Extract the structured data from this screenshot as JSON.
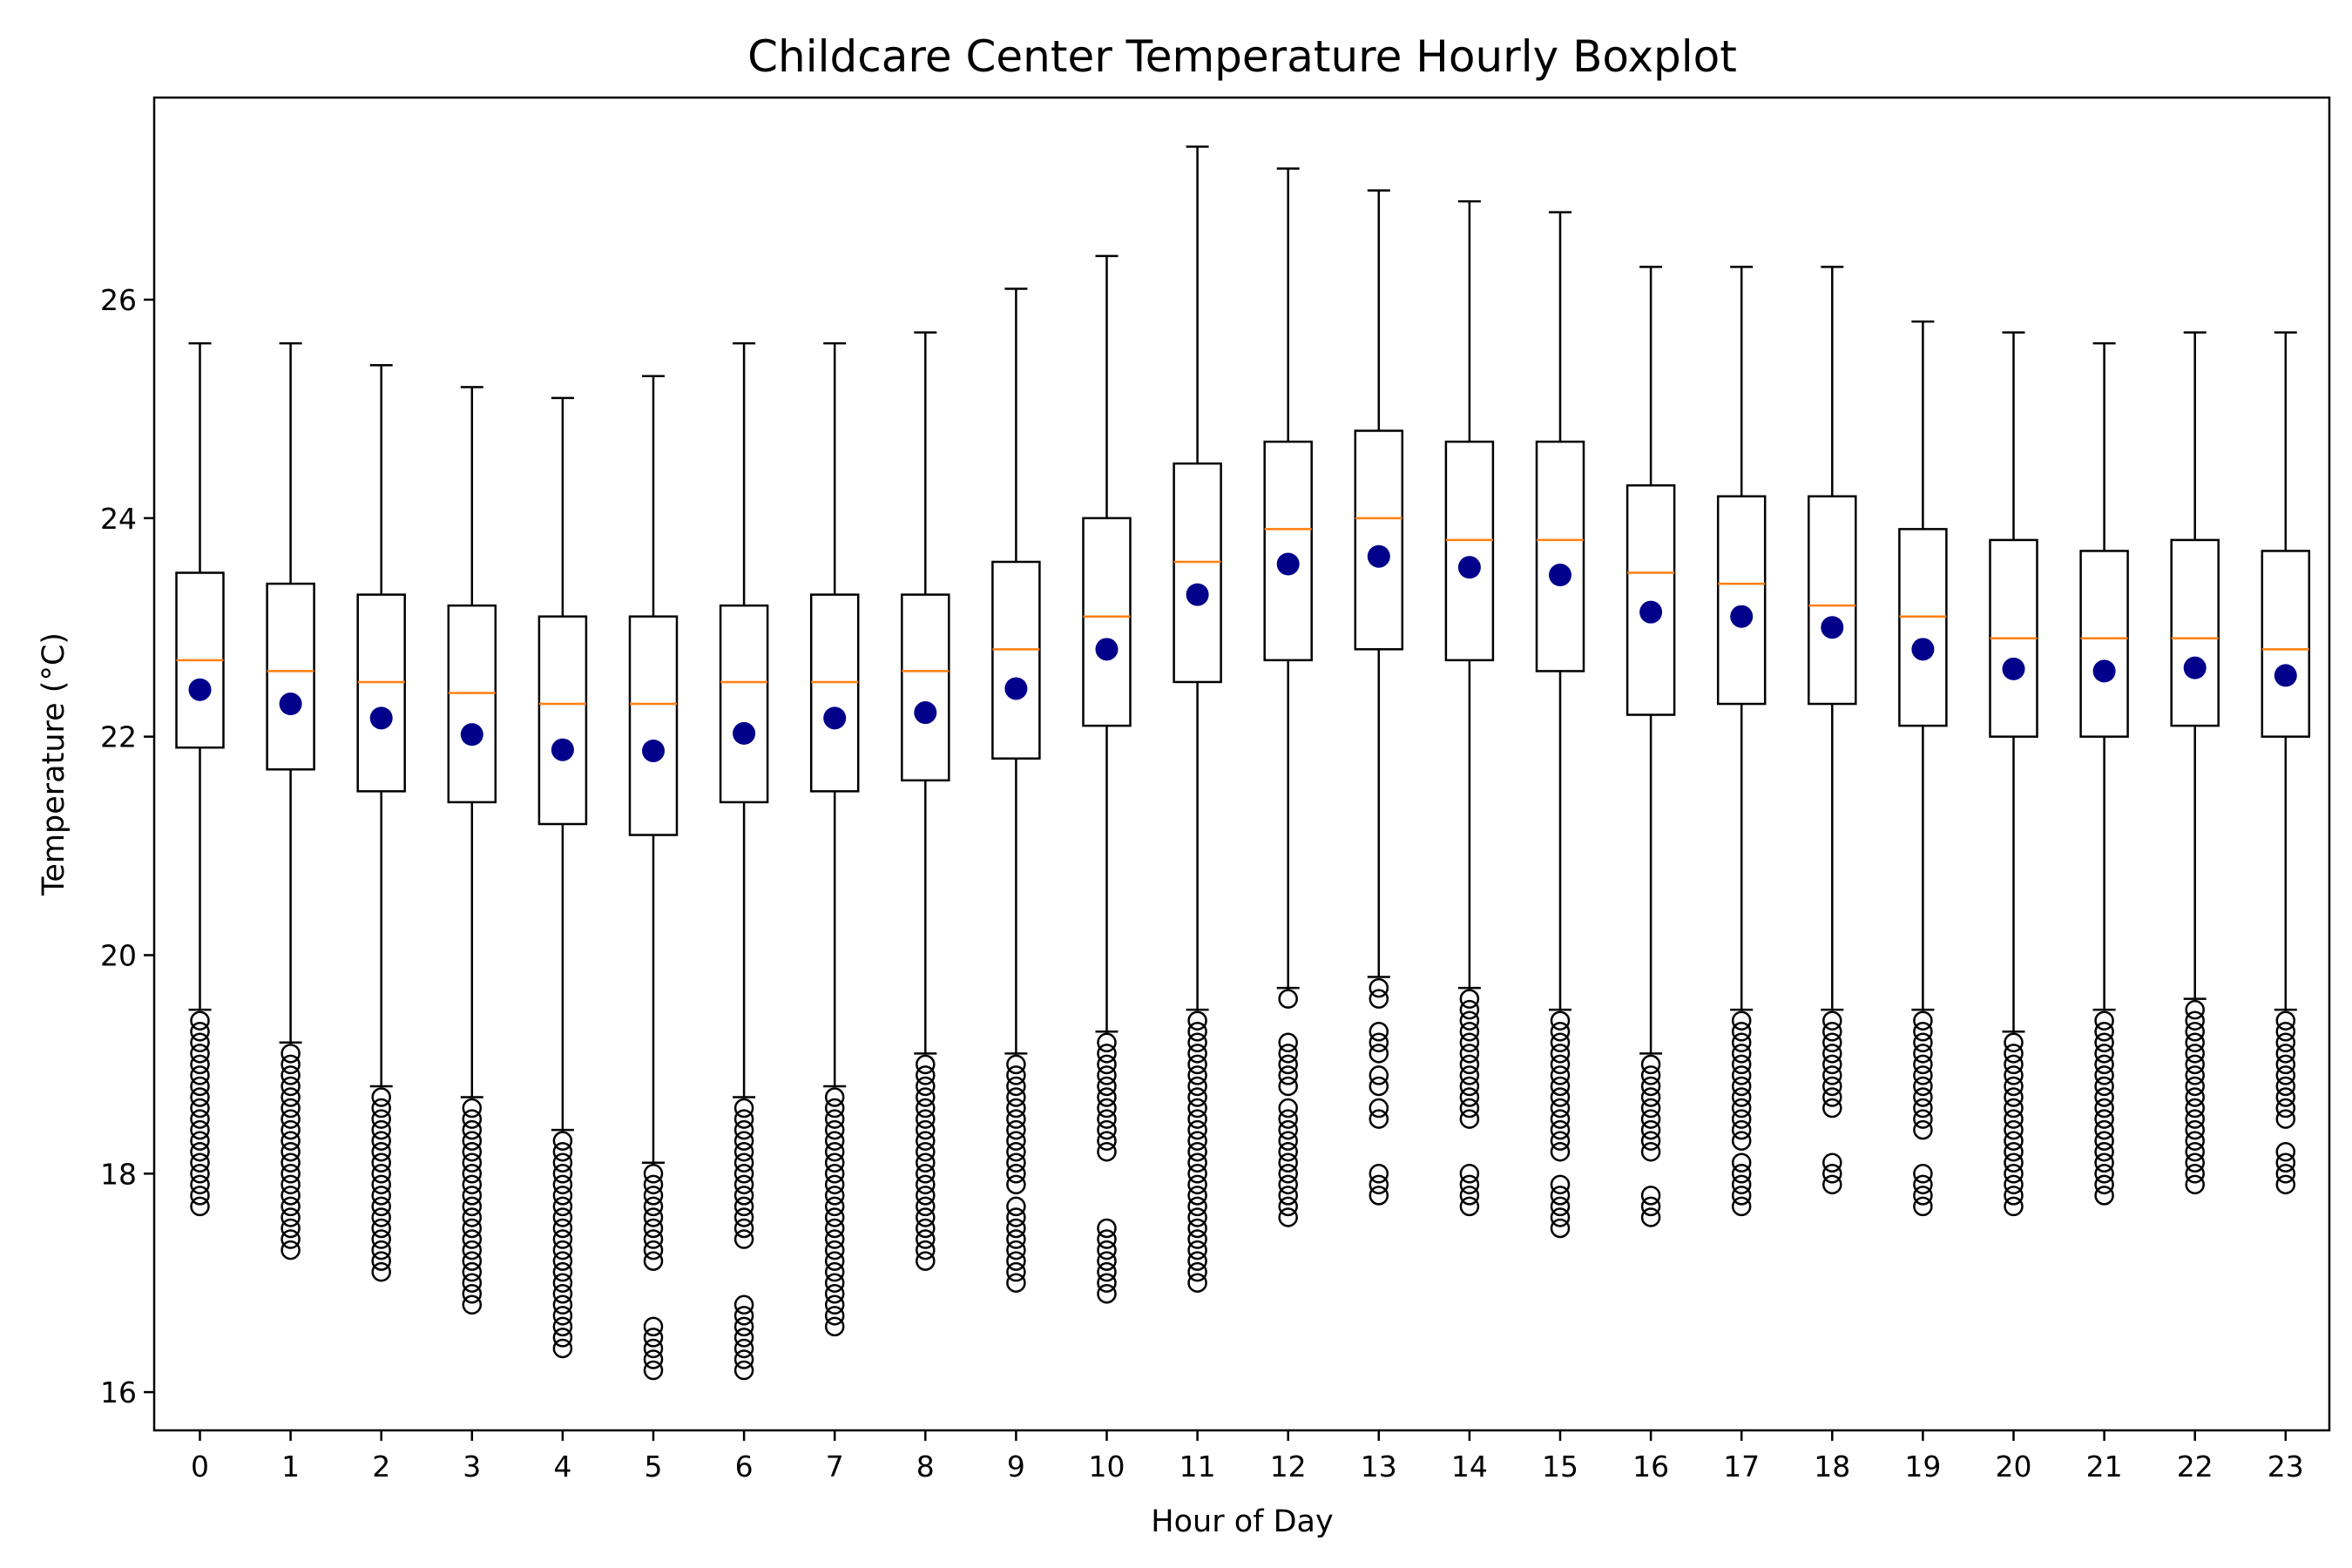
{
  "chart_data": {
    "type": "boxplot",
    "title": "Childcare Center Temperature Hourly Boxplot",
    "xlabel": "Hour of Day",
    "ylabel": "Temperature (°C)",
    "ylim": [
      15.65,
      27.85
    ],
    "yticks": [
      16,
      18,
      20,
      22,
      24,
      26
    ],
    "grid": false,
    "colors": {
      "box": "#000000",
      "median": "#ff7f0e",
      "mean": "#00008b",
      "outlier": "#000000"
    },
    "categories": [
      "0",
      "1",
      "2",
      "3",
      "4",
      "5",
      "6",
      "7",
      "8",
      "9",
      "10",
      "11",
      "12",
      "13",
      "14",
      "15",
      "16",
      "17",
      "18",
      "19",
      "20",
      "21",
      "22",
      "23"
    ],
    "boxes": [
      {
        "hour": "0",
        "whislo": 19.5,
        "q1": 21.9,
        "med": 22.7,
        "q3": 23.5,
        "whishi": 25.6,
        "mean": 22.43,
        "fliers": [
          19.4,
          19.3,
          19.2,
          19.1,
          19.0,
          18.9,
          18.8,
          18.7,
          18.6,
          18.5,
          18.4,
          18.3,
          18.2,
          18.1,
          18.0,
          17.9,
          17.8,
          17.7
        ]
      },
      {
        "hour": "1",
        "whislo": 19.2,
        "q1": 21.7,
        "med": 22.6,
        "q3": 23.4,
        "whishi": 25.6,
        "mean": 22.3,
        "fliers": [
          19.1,
          19.0,
          18.9,
          18.8,
          18.7,
          18.6,
          18.5,
          18.4,
          18.3,
          18.2,
          18.1,
          18.0,
          17.9,
          17.8,
          17.7,
          17.6,
          17.5,
          17.4,
          17.3
        ]
      },
      {
        "hour": "2",
        "whislo": 18.8,
        "q1": 21.5,
        "med": 22.5,
        "q3": 23.3,
        "whishi": 25.4,
        "mean": 22.17,
        "fliers": [
          18.7,
          18.6,
          18.5,
          18.4,
          18.3,
          18.2,
          18.1,
          18.0,
          17.9,
          17.8,
          17.7,
          17.6,
          17.5,
          17.4,
          17.3,
          17.2,
          17.1
        ]
      },
      {
        "hour": "3",
        "whislo": 18.7,
        "q1": 21.4,
        "med": 22.4,
        "q3": 23.2,
        "whishi": 25.2,
        "mean": 22.02,
        "fliers": [
          18.6,
          18.5,
          18.4,
          18.3,
          18.2,
          18.1,
          18.0,
          17.9,
          17.8,
          17.7,
          17.6,
          17.5,
          17.4,
          17.3,
          17.2,
          17.1,
          17.0,
          16.9,
          16.8
        ]
      },
      {
        "hour": "4",
        "whislo": 18.4,
        "q1": 21.2,
        "med": 22.3,
        "q3": 23.1,
        "whishi": 25.1,
        "mean": 21.88,
        "fliers": [
          18.3,
          18.2,
          18.1,
          18.0,
          17.9,
          17.8,
          17.7,
          17.6,
          17.5,
          17.4,
          17.3,
          17.2,
          17.1,
          17.0,
          16.9,
          16.8,
          16.7,
          16.6,
          16.5,
          16.4
        ]
      },
      {
        "hour": "5",
        "whislo": 18.1,
        "q1": 21.1,
        "med": 22.3,
        "q3": 23.1,
        "whishi": 25.3,
        "mean": 21.87,
        "fliers": [
          18.0,
          17.9,
          17.8,
          17.7,
          17.6,
          17.5,
          17.4,
          17.3,
          17.2,
          16.6,
          16.5,
          16.4,
          16.3,
          16.2
        ]
      },
      {
        "hour": "6",
        "whislo": 18.7,
        "q1": 21.4,
        "med": 22.5,
        "q3": 23.2,
        "whishi": 25.6,
        "mean": 22.03,
        "fliers": [
          18.6,
          18.5,
          18.4,
          18.3,
          18.2,
          18.1,
          18.0,
          17.9,
          17.8,
          17.7,
          17.6,
          17.5,
          17.4,
          16.8,
          16.7,
          16.6,
          16.5,
          16.4,
          16.3,
          16.2
        ]
      },
      {
        "hour": "7",
        "whislo": 18.8,
        "q1": 21.5,
        "med": 22.5,
        "q3": 23.3,
        "whishi": 25.6,
        "mean": 22.17,
        "fliers": [
          18.7,
          18.6,
          18.5,
          18.4,
          18.3,
          18.2,
          18.1,
          18.0,
          17.9,
          17.8,
          17.7,
          17.6,
          17.5,
          17.4,
          17.3,
          17.2,
          17.1,
          17.0,
          16.9,
          16.8,
          16.7,
          16.6
        ]
      },
      {
        "hour": "8",
        "whislo": 19.1,
        "q1": 21.6,
        "med": 22.6,
        "q3": 23.3,
        "whishi": 25.7,
        "mean": 22.22,
        "fliers": [
          19.0,
          18.9,
          18.8,
          18.7,
          18.6,
          18.5,
          18.4,
          18.3,
          18.2,
          18.1,
          18.0,
          17.9,
          17.8,
          17.7,
          17.6,
          17.5,
          17.4,
          17.3,
          17.2
        ]
      },
      {
        "hour": "9",
        "whislo": 19.1,
        "q1": 21.8,
        "med": 22.8,
        "q3": 23.6,
        "whishi": 26.1,
        "mean": 22.44,
        "fliers": [
          19.0,
          18.9,
          18.8,
          18.7,
          18.6,
          18.5,
          18.4,
          18.3,
          18.2,
          18.1,
          18.0,
          17.9,
          17.7,
          17.6,
          17.5,
          17.4,
          17.3,
          17.2,
          17.1,
          17.0
        ]
      },
      {
        "hour": "10",
        "whislo": 19.3,
        "q1": 22.1,
        "med": 23.1,
        "q3": 24.0,
        "whishi": 26.4,
        "mean": 22.8,
        "fliers": [
          19.2,
          19.1,
          19.0,
          18.9,
          18.8,
          18.7,
          18.6,
          18.5,
          18.4,
          18.3,
          18.2,
          17.5,
          17.4,
          17.3,
          17.2,
          17.1,
          17.0,
          16.9
        ]
      },
      {
        "hour": "11",
        "whislo": 19.5,
        "q1": 22.5,
        "med": 23.6,
        "q3": 24.5,
        "whishi": 27.4,
        "mean": 23.3,
        "fliers": [
          19.4,
          19.3,
          19.2,
          19.1,
          19.0,
          18.9,
          18.8,
          18.7,
          18.6,
          18.5,
          18.4,
          18.3,
          18.2,
          18.1,
          18.0,
          17.9,
          17.8,
          17.7,
          17.6,
          17.5,
          17.4,
          17.3,
          17.2,
          17.1,
          17.0
        ]
      },
      {
        "hour": "12",
        "whislo": 19.7,
        "q1": 22.7,
        "med": 23.9,
        "q3": 24.7,
        "whishi": 27.2,
        "mean": 23.58,
        "fliers": [
          19.6,
          19.2,
          19.1,
          19.0,
          18.9,
          18.8,
          18.6,
          18.5,
          18.4,
          18.3,
          18.2,
          18.1,
          18.0,
          17.9,
          17.8,
          17.7,
          17.6
        ]
      },
      {
        "hour": "13",
        "whislo": 19.8,
        "q1": 22.8,
        "med": 24.0,
        "q3": 24.8,
        "whishi": 27.0,
        "mean": 23.65,
        "fliers": [
          19.7,
          19.6,
          19.3,
          19.2,
          19.1,
          18.9,
          18.8,
          18.6,
          18.5,
          18.0,
          17.9,
          17.8
        ]
      },
      {
        "hour": "14",
        "whislo": 19.7,
        "q1": 22.7,
        "med": 23.8,
        "q3": 24.7,
        "whishi": 26.9,
        "mean": 23.55,
        "fliers": [
          19.6,
          19.5,
          19.4,
          19.3,
          19.2,
          19.1,
          19.0,
          18.9,
          18.8,
          18.7,
          18.6,
          18.5,
          18.0,
          17.9,
          17.8,
          17.7
        ]
      },
      {
        "hour": "15",
        "whislo": 19.5,
        "q1": 22.6,
        "med": 23.8,
        "q3": 24.7,
        "whishi": 26.8,
        "mean": 23.48,
        "fliers": [
          19.4,
          19.3,
          19.2,
          19.1,
          19.0,
          18.9,
          18.8,
          18.7,
          18.6,
          18.5,
          18.4,
          18.3,
          18.2,
          17.9,
          17.8,
          17.7,
          17.6,
          17.5
        ]
      },
      {
        "hour": "16",
        "whislo": 19.1,
        "q1": 22.2,
        "med": 23.5,
        "q3": 24.3,
        "whishi": 26.3,
        "mean": 23.14,
        "fliers": [
          19.0,
          18.9,
          18.8,
          18.7,
          18.6,
          18.5,
          18.4,
          18.3,
          18.2,
          17.8,
          17.7,
          17.6
        ]
      },
      {
        "hour": "17",
        "whislo": 19.5,
        "q1": 22.3,
        "med": 23.4,
        "q3": 24.2,
        "whishi": 26.3,
        "mean": 23.1,
        "fliers": [
          19.4,
          19.3,
          19.2,
          19.1,
          19.0,
          18.9,
          18.8,
          18.7,
          18.6,
          18.5,
          18.4,
          18.3,
          18.1,
          18.0,
          17.9,
          17.8,
          17.7
        ]
      },
      {
        "hour": "18",
        "whislo": 19.5,
        "q1": 22.3,
        "med": 23.2,
        "q3": 24.2,
        "whishi": 26.3,
        "mean": 23.0,
        "fliers": [
          19.4,
          19.3,
          19.2,
          19.1,
          19.0,
          18.9,
          18.8,
          18.7,
          18.6,
          18.1,
          18.0,
          17.9
        ]
      },
      {
        "hour": "19",
        "whislo": 19.5,
        "q1": 22.1,
        "med": 23.1,
        "q3": 23.9,
        "whishi": 25.8,
        "mean": 22.8,
        "fliers": [
          19.4,
          19.3,
          19.2,
          19.1,
          19.0,
          18.9,
          18.8,
          18.7,
          18.6,
          18.5,
          18.4,
          18.0,
          17.9,
          17.8,
          17.7
        ]
      },
      {
        "hour": "20",
        "whislo": 19.3,
        "q1": 22.0,
        "med": 22.9,
        "q3": 23.8,
        "whishi": 25.7,
        "mean": 22.62,
        "fliers": [
          19.2,
          19.1,
          19.0,
          18.9,
          18.8,
          18.7,
          18.6,
          18.5,
          18.4,
          18.3,
          18.2,
          18.1,
          18.0,
          17.9,
          17.8,
          17.7
        ]
      },
      {
        "hour": "21",
        "whislo": 19.5,
        "q1": 22.0,
        "med": 22.9,
        "q3": 23.7,
        "whishi": 25.6,
        "mean": 22.6,
        "fliers": [
          19.4,
          19.3,
          19.2,
          19.1,
          19.0,
          18.9,
          18.8,
          18.7,
          18.6,
          18.5,
          18.4,
          18.3,
          18.2,
          18.1,
          18.0,
          17.9,
          17.8
        ]
      },
      {
        "hour": "22",
        "whislo": 19.6,
        "q1": 22.1,
        "med": 22.9,
        "q3": 23.8,
        "whishi": 25.7,
        "mean": 22.63,
        "fliers": [
          19.5,
          19.4,
          19.3,
          19.2,
          19.1,
          19.0,
          18.9,
          18.8,
          18.7,
          18.6,
          18.5,
          18.4,
          18.3,
          18.2,
          18.1,
          18.0,
          17.9
        ]
      },
      {
        "hour": "23",
        "whislo": 19.5,
        "q1": 22.0,
        "med": 22.8,
        "q3": 23.7,
        "whishi": 25.7,
        "mean": 22.56,
        "fliers": [
          19.4,
          19.3,
          19.2,
          19.1,
          19.0,
          18.9,
          18.8,
          18.7,
          18.6,
          18.5,
          18.2,
          18.1,
          18.0,
          17.9
        ]
      }
    ]
  }
}
